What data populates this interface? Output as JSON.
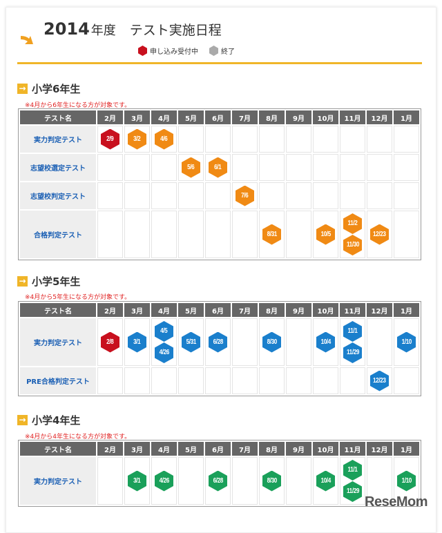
{
  "header": {
    "year": "2014",
    "nendo": "年度",
    "subtitle": "テスト実施日程"
  },
  "legend": [
    {
      "label": "申し込み受付中",
      "color": "#c8101e"
    },
    {
      "label": "終了",
      "color": "#aaaaaa"
    }
  ],
  "colors": {
    "accent": "#f0b528",
    "open": "#c8101e",
    "grade6": "#f08a14",
    "grade5": "#1a7fcc",
    "grade4": "#1aa05a"
  },
  "table_headers": {
    "name": "テスト名",
    "months": [
      "2月",
      "3月",
      "4月",
      "5月",
      "6月",
      "7月",
      "8月",
      "9月",
      "10月",
      "11月",
      "12月",
      "1月"
    ]
  },
  "sections": [
    {
      "title": "小学6年生",
      "note": "※4月から6年生になる方が対象です。",
      "color_key": "grade6",
      "rows": [
        {
          "name": "実力判定テスト",
          "cells": [
            [
              {
                "date": "2/9",
                "status": "open"
              }
            ],
            [
              "3/2"
            ],
            [
              "4/6"
            ],
            [],
            [],
            [],
            [],
            [],
            [],
            [],
            [],
            []
          ]
        },
        {
          "name": "志望校選定テスト",
          "cells": [
            [],
            [],
            [],
            [
              "5/6"
            ],
            [
              "6/1"
            ],
            [],
            [],
            [],
            [],
            [],
            [],
            []
          ]
        },
        {
          "name": "志望校判定テスト",
          "cells": [
            [],
            [],
            [],
            [],
            [],
            [
              "7/6"
            ],
            [],
            [],
            [],
            [],
            [],
            []
          ]
        },
        {
          "name": "合格判定テスト",
          "cells": [
            [],
            [],
            [],
            [],
            [],
            [],
            [
              "8/31"
            ],
            [],
            [
              "10/5"
            ],
            [
              "11/2",
              "11/30"
            ],
            [
              "12/23"
            ],
            []
          ]
        }
      ]
    },
    {
      "title": "小学5年生",
      "note": "※4月から5年生になる方が対象です。",
      "color_key": "grade5",
      "rows": [
        {
          "name": "実力判定テスト",
          "cells": [
            [
              {
                "date": "2/8",
                "status": "open"
              }
            ],
            [
              "3/1"
            ],
            [
              "4/5",
              "4/26"
            ],
            [
              "5/31"
            ],
            [
              "6/28"
            ],
            [],
            [
              "8/30"
            ],
            [],
            [
              "10/4"
            ],
            [
              "11/1",
              "11/29"
            ],
            [],
            [
              "1/10"
            ]
          ]
        },
        {
          "name": "PRE合格判定テスト",
          "cells": [
            [],
            [],
            [],
            [],
            [],
            [],
            [],
            [],
            [],
            [],
            [
              "12/23"
            ],
            []
          ]
        }
      ]
    },
    {
      "title": "小学4年生",
      "note": "※4月から4年生になる方が対象です。",
      "color_key": "grade4",
      "rows": [
        {
          "name": "実力判定テスト",
          "cells": [
            [],
            [
              "3/1"
            ],
            [
              "4/26"
            ],
            [],
            [
              "6/28"
            ],
            [],
            [
              "8/30"
            ],
            [],
            [
              "10/4"
            ],
            [
              "11/1",
              "11/29"
            ],
            [],
            [
              "1/10"
            ]
          ]
        }
      ]
    }
  ],
  "watermark": "ReseMom"
}
